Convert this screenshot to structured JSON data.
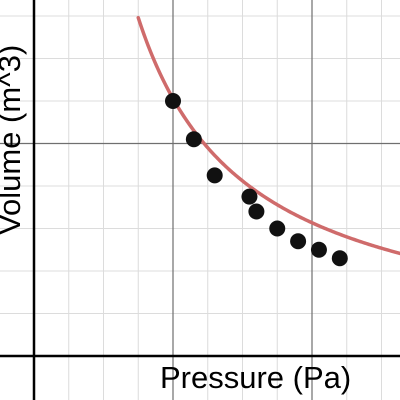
{
  "chart_data": {
    "type": "scatter",
    "xlabel": "Pressure (Pa)",
    "ylabel": "Volume (m^3)",
    "xlim": [
      0,
      7
    ],
    "ylim": [
      -0.4,
      8.2
    ],
    "grid": true,
    "points": [
      {
        "x": 2.0,
        "y": 6.0
      },
      {
        "x": 2.3,
        "y": 5.1
      },
      {
        "x": 2.6,
        "y": 4.25
      },
      {
        "x": 3.1,
        "y": 3.75
      },
      {
        "x": 3.2,
        "y": 3.4
      },
      {
        "x": 3.5,
        "y": 3.0
      },
      {
        "x": 3.8,
        "y": 2.7
      },
      {
        "x": 4.1,
        "y": 2.5
      },
      {
        "x": 4.4,
        "y": 2.3
      }
    ],
    "fit": {
      "type": "power",
      "a": 11.7,
      "b": -0.95
    },
    "colors": {
      "points": "#111111",
      "fit_line": "#cf6b6b",
      "grid_minor": "#dcdcdc",
      "grid_major": "#6f6f6f",
      "axis": "#000000"
    }
  }
}
